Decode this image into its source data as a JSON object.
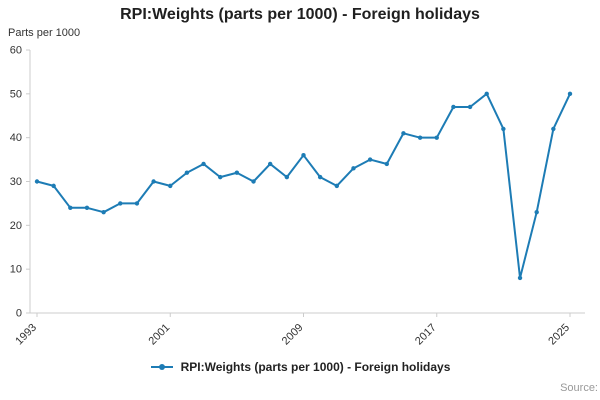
{
  "header": {
    "title": "RPI:Weights (parts per 1000) - Foreign holidays"
  },
  "axis": {
    "y_axis_title": "Parts per 1000"
  },
  "legend": {
    "label": "RPI:Weights (parts per 1000) - Foreign holidays"
  },
  "footer": {
    "source": "Source:"
  },
  "colors": {
    "line": "#1d7cb5",
    "axis": "#cccccc",
    "tick_text": "#333333"
  },
  "chart_data": {
    "type": "line",
    "title": "RPI:Weights (parts per 1000) - Foreign holidays",
    "xlabel": "",
    "ylabel": "Parts per 1000",
    "x": [
      1993,
      1994,
      1995,
      1996,
      1997,
      1998,
      1999,
      2000,
      2001,
      2002,
      2003,
      2004,
      2005,
      2006,
      2007,
      2008,
      2009,
      2010,
      2011,
      2012,
      2013,
      2014,
      2015,
      2016,
      2017,
      2018,
      2019,
      2020,
      2021,
      2022,
      2023,
      2024,
      2025
    ],
    "series": [
      {
        "name": "RPI:Weights (parts per 1000) - Foreign holidays",
        "color": "#1d7cb5",
        "marker": "circle",
        "values": [
          30,
          29,
          24,
          24,
          23,
          25,
          25,
          30,
          29,
          32,
          34,
          31,
          32,
          30,
          34,
          31,
          36,
          31,
          29,
          33,
          35,
          34,
          41,
          40,
          40,
          47,
          47,
          50,
          42,
          8,
          23,
          42,
          50
        ]
      }
    ],
    "ylim": [
      0,
      60
    ],
    "xlim": [
      1993,
      2025
    ],
    "y_ticks": [
      0,
      10,
      20,
      30,
      40,
      50,
      60
    ],
    "x_ticks": [
      1993,
      2001,
      2009,
      2017,
      2025
    ],
    "grid": false,
    "legend_position": "bottom"
  }
}
